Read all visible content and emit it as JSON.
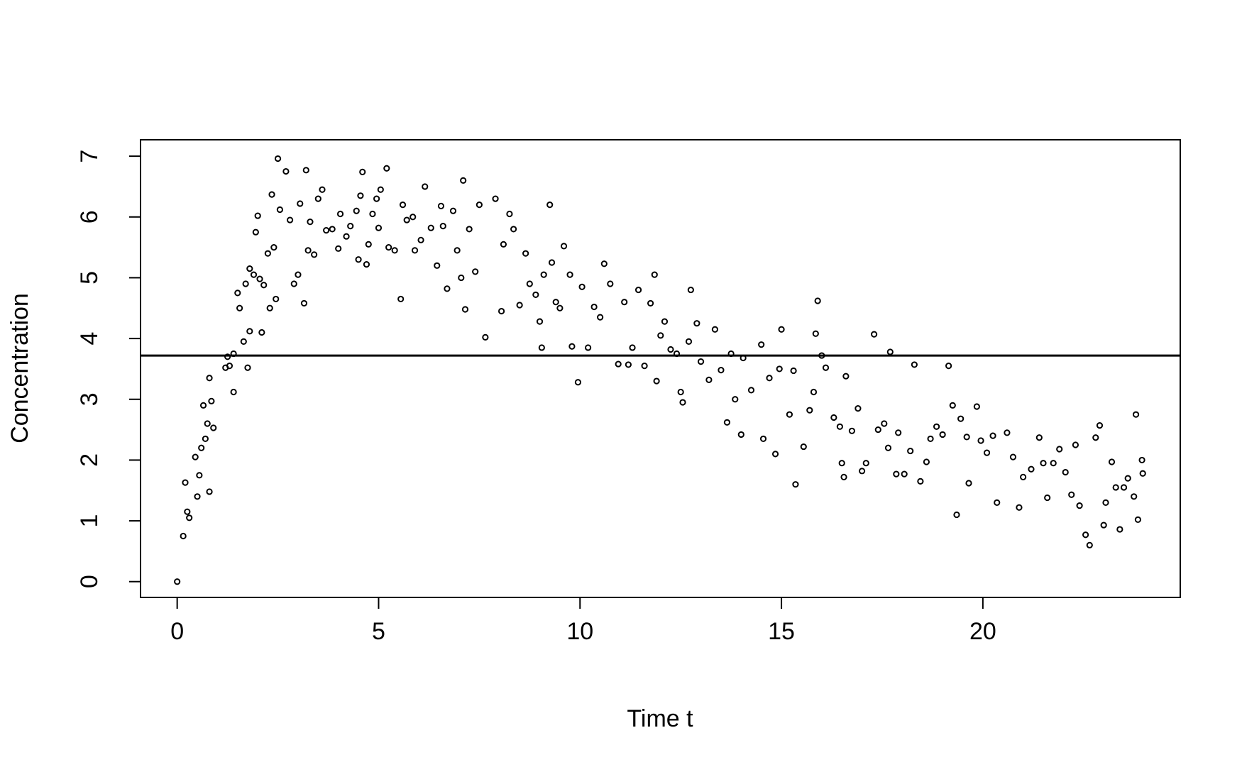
{
  "chart_data": {
    "type": "scatter",
    "xlabel": "Time t",
    "ylabel": "Concentration",
    "xlim": [
      -0.91,
      24.9
    ],
    "ylim": [
      -0.26,
      7.27
    ],
    "xticks": [
      0,
      5,
      10,
      15,
      20
    ],
    "yticks": [
      0,
      1,
      2,
      3,
      4,
      5,
      6,
      7
    ],
    "color": "#000000",
    "hline": 3.72,
    "x": [
      0,
      0.15,
      0.2,
      0.25,
      0.3,
      0.45,
      0.5,
      0.55,
      0.6,
      0.65,
      0.7,
      0.75,
      0.8,
      0.8,
      0.85,
      0.9,
      1.2,
      1.25,
      1.3,
      1.4,
      1.4,
      1.5,
      1.55,
      1.65,
      1.7,
      1.75,
      1.8,
      1.8,
      1.9,
      1.95,
      2.0,
      2.05,
      2.1,
      2.15,
      2.25,
      2.3,
      2.35,
      2.4,
      2.45,
      2.5,
      2.55,
      2.7,
      2.8,
      2.9,
      3.0,
      3.05,
      3.15,
      3.2,
      3.25,
      3.3,
      3.4,
      3.5,
      3.6,
      3.7,
      3.85,
      4.0,
      4.05,
      4.2,
      4.3,
      4.45,
      4.5,
      4.55,
      4.6,
      4.7,
      4.75,
      4.85,
      4.95,
      5.0,
      5.05,
      5.2,
      5.25,
      5.4,
      5.55,
      5.6,
      5.7,
      5.85,
      5.9,
      6.05,
      6.15,
      6.3,
      6.45,
      6.55,
      6.6,
      6.7,
      6.85,
      6.95,
      7.05,
      7.1,
      7.15,
      7.25,
      7.4,
      7.5,
      7.65,
      7.9,
      8.05,
      8.1,
      8.25,
      8.35,
      8.5,
      8.65,
      8.75,
      8.9,
      9.0,
      9.05,
      9.1,
      9.25,
      9.3,
      9.4,
      9.5,
      9.6,
      9.75,
      9.8,
      9.95,
      10.05,
      10.2,
      10.35,
      10.5,
      10.6,
      10.75,
      10.95,
      11.1,
      11.2,
      11.3,
      11.45,
      11.6,
      11.75,
      11.85,
      11.9,
      12.0,
      12.1,
      12.25,
      12.4,
      12.5,
      12.55,
      12.7,
      12.75,
      12.9,
      13.0,
      13.2,
      13.35,
      13.5,
      13.65,
      13.75,
      13.85,
      14.0,
      14.05,
      14.25,
      14.5,
      14.55,
      14.7,
      14.85,
      14.95,
      15.0,
      15.2,
      15.3,
      15.35,
      15.55,
      15.7,
      15.8,
      15.85,
      15.9,
      16.0,
      16.1,
      16.3,
      16.45,
      16.5,
      16.55,
      16.6,
      16.75,
      16.9,
      17.0,
      17.1,
      17.3,
      17.4,
      17.55,
      17.65,
      17.7,
      17.85,
      17.9,
      18.05,
      18.2,
      18.3,
      18.45,
      18.6,
      18.7,
      18.85,
      19.0,
      19.15,
      19.25,
      19.35,
      19.45,
      19.6,
      19.65,
      19.85,
      19.95,
      20.1,
      20.25,
      20.35,
      20.6,
      20.75,
      20.9,
      21.0,
      21.2,
      21.4,
      21.5,
      21.6,
      21.75,
      21.9,
      22.05,
      22.2,
      22.3,
      22.4,
      22.55,
      22.65,
      22.8,
      22.9,
      23.0,
      23.05,
      23.2,
      23.3,
      23.4,
      23.5,
      23.6,
      23.75,
      23.8,
      23.85,
      23.95,
      23.97
    ],
    "y": [
      0,
      0.75,
      1.63,
      1.15,
      1.05,
      2.05,
      1.4,
      1.75,
      2.2,
      2.9,
      2.35,
      2.6,
      3.35,
      1.48,
      2.97,
      2.53,
      3.52,
      3.7,
      3.55,
      3.12,
      3.75,
      4.75,
      4.5,
      3.95,
      4.9,
      3.52,
      5.15,
      4.12,
      5.05,
      5.75,
      6.02,
      4.98,
      4.1,
      4.88,
      5.4,
      4.5,
      6.37,
      5.5,
      4.65,
      6.96,
      6.12,
      6.75,
      5.95,
      4.9,
      5.05,
      6.22,
      4.58,
      6.77,
      5.45,
      5.92,
      5.38,
      6.3,
      6.45,
      5.78,
      5.8,
      5.48,
      6.05,
      5.68,
      5.85,
      6.1,
      5.3,
      6.35,
      6.74,
      5.22,
      5.55,
      6.05,
      6.3,
      5.82,
      6.45,
      6.8,
      5.5,
      5.45,
      4.65,
      6.2,
      5.95,
      6.0,
      5.45,
      5.62,
      6.5,
      5.82,
      5.2,
      6.18,
      5.85,
      4.82,
      6.1,
      5.45,
      5.0,
      6.6,
      4.48,
      5.8,
      5.1,
      6.2,
      4.02,
      6.3,
      4.45,
      5.55,
      6.05,
      5.8,
      4.55,
      5.4,
      4.9,
      4.72,
      4.28,
      3.85,
      5.05,
      6.2,
      5.25,
      4.6,
      4.5,
      5.52,
      5.05,
      3.87,
      3.28,
      4.85,
      3.85,
      4.52,
      4.35,
      5.23,
      4.9,
      3.58,
      4.6,
      3.57,
      3.85,
      4.8,
      3.55,
      4.58,
      5.05,
      3.3,
      4.05,
      4.28,
      3.82,
      3.75,
      3.12,
      2.95,
      3.95,
      4.8,
      4.25,
      3.62,
      3.32,
      4.15,
      3.48,
      2.62,
      3.75,
      3.0,
      2.42,
      3.68,
      3.15,
      3.9,
      2.35,
      3.35,
      2.1,
      3.5,
      4.15,
      2.75,
      3.47,
      1.6,
      2.22,
      2.82,
      3.12,
      4.08,
      4.62,
      3.72,
      3.52,
      2.7,
      2.55,
      1.95,
      1.72,
      3.38,
      2.48,
      2.85,
      1.82,
      1.95,
      4.07,
      2.5,
      2.6,
      2.2,
      3.78,
      1.77,
      2.45,
      1.77,
      2.15,
      3.57,
      1.65,
      1.97,
      2.35,
      2.55,
      2.42,
      3.55,
      2.9,
      1.1,
      2.68,
      2.38,
      1.62,
      2.88,
      2.32,
      2.12,
      2.4,
      1.3,
      2.45,
      2.05,
      1.22,
      1.72,
      1.85,
      2.37,
      1.95,
      1.38,
      1.95,
      2.18,
      1.8,
      1.43,
      2.25,
      1.25,
      0.77,
      0.6,
      2.37,
      2.57,
      0.93,
      1.3,
      1.97,
      1.55,
      0.86,
      1.55,
      1.7,
      1.4,
      2.75,
      1.02,
      2.0,
      1.78
    ]
  }
}
